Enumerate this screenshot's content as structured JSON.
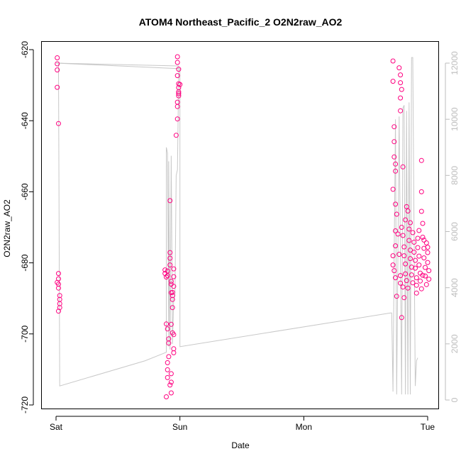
{
  "chart_data": {
    "type": "scatter",
    "title": "ATOM4 Northeast_Pacific_2 O2N2raw_AO2",
    "xlabel": "Date",
    "ylabel": "O2N2raw_AO2",
    "x_ticks": [
      "Sat",
      "Sun",
      "Mon",
      "Tue"
    ],
    "xlim": [
      -0.04,
      3.07
    ],
    "ylim": [
      -720,
      -620
    ],
    "y_ticks": [
      -620,
      -640,
      -660,
      -680,
      -700,
      -720
    ],
    "y2lim": [
      0,
      12000
    ],
    "y2_ticks": [
      0,
      2000,
      4000,
      6000,
      8000,
      10000,
      12000
    ],
    "colors": {
      "points": "#ff0080",
      "secondary_line": "#c8c8c8",
      "axis": "#000000",
      "secondary_axis": "#bdbdbd"
    },
    "series": [
      {
        "points": [
          [
            0.01,
            -622.3
          ],
          [
            0.01,
            -624
          ],
          [
            0.01,
            -625.7
          ],
          [
            0.01,
            -630.6
          ],
          [
            0.02,
            -640.8
          ],
          [
            0.02,
            -683
          ],
          [
            0.02,
            -684.5
          ],
          [
            0.02,
            -686
          ],
          [
            0.02,
            -687.1
          ],
          [
            0.03,
            -689.2
          ],
          [
            0.03,
            -690.3
          ],
          [
            0.03,
            -691.5
          ],
          [
            0.03,
            -692.6
          ],
          [
            0.02,
            -693.6
          ],
          [
            0.01,
            -685.5
          ],
          [
            0.88,
            -682
          ],
          [
            0.88,
            -683
          ],
          [
            0.89,
            -684
          ],
          [
            0.9,
            -682.3
          ],
          [
            0.9,
            -683.6
          ],
          [
            0.89,
            -697.2
          ],
          [
            0.9,
            -698.6
          ],
          [
            0.91,
            -701.4
          ],
          [
            0.91,
            -702.6
          ],
          [
            0.91,
            -706.4
          ],
          [
            0.9,
            -708.1
          ],
          [
            0.9,
            -710.1
          ],
          [
            0.9,
            -712.3
          ],
          [
            0.89,
            -717.7
          ],
          [
            0.92,
            -662.5
          ],
          [
            0.92,
            -677.1
          ],
          [
            0.92,
            -678.7
          ],
          [
            0.92,
            -680.6
          ],
          [
            0.93,
            -685.2
          ],
          [
            0.93,
            -686
          ],
          [
            0.93,
            -688.4
          ],
          [
            0.94,
            -689.2
          ],
          [
            0.94,
            -690.3
          ],
          [
            0.94,
            -692.6
          ],
          [
            0.93,
            -697.3
          ],
          [
            0.94,
            -699.7
          ],
          [
            0.95,
            -700.2
          ],
          [
            0.95,
            -704.2
          ],
          [
            0.93,
            -711.2
          ],
          [
            0.93,
            -713.6
          ],
          [
            0.92,
            -714.4
          ],
          [
            0.93,
            -716.6
          ],
          [
            0.95,
            -705.3
          ],
          [
            0.94,
            -688.3
          ],
          [
            0.95,
            -683.9
          ],
          [
            0.95,
            -681.7
          ],
          [
            0.95,
            -686.6
          ],
          [
            0.98,
            -622
          ],
          [
            0.98,
            -623.6
          ],
          [
            0.99,
            -625.5
          ],
          [
            0.98,
            -627.3
          ],
          [
            0.99,
            -629.6
          ],
          [
            0.99,
            -630.7
          ],
          [
            0.99,
            -631.9
          ],
          [
            0.99,
            -633
          ],
          [
            0.98,
            -634.8
          ],
          [
            0.98,
            -636
          ],
          [
            0.98,
            -639.5
          ],
          [
            0.97,
            -644.1
          ],
          [
            1.0,
            -629.8
          ],
          [
            0.99,
            -632.4
          ],
          [
            2.72,
            -623.2
          ],
          [
            2.72,
            -628.9
          ],
          [
            2.73,
            -641.7
          ],
          [
            2.73,
            -645.9
          ],
          [
            2.73,
            -650.2
          ],
          [
            2.74,
            -652.2
          ],
          [
            2.74,
            -654.2
          ],
          [
            2.72,
            -659.3
          ],
          [
            2.74,
            -663.5
          ],
          [
            2.75,
            -666.3
          ],
          [
            2.74,
            -671
          ],
          [
            2.74,
            -675.2
          ],
          [
            2.72,
            -678
          ],
          [
            2.72,
            -680.6
          ],
          [
            2.73,
            -682.2
          ],
          [
            2.74,
            -684.2
          ],
          [
            2.75,
            -689.4
          ],
          [
            2.76,
            -671.9
          ],
          [
            2.77,
            -677.6
          ],
          [
            2.78,
            -683.6
          ],
          [
            2.78,
            -685.7
          ],
          [
            2.8,
            -686.8
          ],
          [
            2.81,
            -689.8
          ],
          [
            2.79,
            -695.4
          ],
          [
            2.77,
            -625.1
          ],
          [
            2.78,
            -627.1
          ],
          [
            2.78,
            -629.3
          ],
          [
            2.79,
            -631.2
          ],
          [
            2.78,
            -633.6
          ],
          [
            2.78,
            -637.2
          ],
          [
            2.8,
            -653
          ],
          [
            2.79,
            -670
          ],
          [
            2.8,
            -672.3
          ],
          [
            2.81,
            -675.5
          ],
          [
            2.81,
            -678
          ],
          [
            2.82,
            -680.3
          ],
          [
            2.82,
            -683.1
          ],
          [
            2.83,
            -685
          ],
          [
            2.84,
            -687.1
          ],
          [
            2.83,
            -664.2
          ],
          [
            2.84,
            -665.4
          ],
          [
            2.82,
            -667.9
          ],
          [
            2.85,
            -670.5
          ],
          [
            2.85,
            -673.7
          ],
          [
            2.86,
            -676.4
          ],
          [
            2.86,
            -678.8
          ],
          [
            2.87,
            -681.2
          ],
          [
            2.87,
            -683.4
          ],
          [
            2.88,
            -685.6
          ],
          [
            2.86,
            -668.7
          ],
          [
            2.88,
            -671.5
          ],
          [
            2.89,
            -674.2
          ],
          [
            2.89,
            -677
          ],
          [
            2.9,
            -679.3
          ],
          [
            2.9,
            -681.5
          ],
          [
            2.91,
            -684.2
          ],
          [
            2.91,
            -686.3
          ],
          [
            2.92,
            -673.1
          ],
          [
            2.92,
            -675.7
          ],
          [
            2.93,
            -678.1
          ],
          [
            2.93,
            -680.6
          ],
          [
            2.94,
            -682.9
          ],
          [
            2.94,
            -685.1
          ],
          [
            2.95,
            -687.3
          ],
          [
            2.95,
            -651.2
          ],
          [
            2.95,
            -660
          ],
          [
            2.95,
            -665.5
          ],
          [
            2.96,
            -668.9
          ],
          [
            2.96,
            -672.8
          ],
          [
            2.97,
            -675.9
          ],
          [
            2.97,
            -678.6
          ],
          [
            2.98,
            -681.3
          ],
          [
            2.98,
            -683.7
          ],
          [
            2.99,
            -686.1
          ],
          [
            2.99,
            -674.4
          ],
          [
            3.0,
            -677.1
          ],
          [
            3.0,
            -679.9
          ],
          [
            3.01,
            -682.2
          ],
          [
            3.01,
            -684.6
          ],
          [
            3.0,
            -675.6
          ],
          [
            2.97,
            -673.6
          ],
          [
            2.96,
            -683.5
          ],
          [
            2.93,
            -670.9
          ],
          [
            2.91,
            -688.5
          ]
        ]
      },
      {
        "axis": "right",
        "line": [
          [
            0.02,
            12000
          ],
          [
            0.02,
            11800
          ],
          [
            0.03,
            500
          ],
          [
            0.72,
            1400
          ],
          [
            0.89,
            1700
          ],
          [
            0.89,
            9000
          ],
          [
            0.9,
            8800
          ],
          [
            0.91,
            1900
          ],
          [
            0.91,
            8500
          ],
          [
            0.92,
            1800
          ],
          [
            0.93,
            8700
          ],
          [
            0.94,
            2000
          ],
          [
            0.95,
            3600
          ],
          [
            0.96,
            3700
          ],
          [
            0.97,
            8000
          ],
          [
            0.98,
            8200
          ],
          [
            0.99,
            11500
          ],
          [
            0.99,
            11900
          ],
          [
            0.0,
            12000
          ],
          [
            1.0,
            11800
          ],
          [
            1.0,
            1900
          ],
          [
            2.7,
            3100
          ],
          [
            2.71,
            3100
          ],
          [
            2.72,
            300
          ],
          [
            2.73,
            5200
          ],
          [
            2.74,
            10000
          ],
          [
            2.75,
            200
          ],
          [
            2.77,
            10100
          ],
          [
            2.79,
            200
          ],
          [
            2.8,
            10400
          ],
          [
            2.81,
            10500
          ],
          [
            2.82,
            200
          ],
          [
            2.83,
            10300
          ],
          [
            2.84,
            200
          ],
          [
            2.85,
            10600
          ],
          [
            2.86,
            200
          ],
          [
            2.87,
            12200
          ],
          [
            2.88,
            12200
          ],
          [
            2.89,
            6000
          ],
          [
            2.9,
            500
          ],
          [
            2.91,
            1400
          ],
          [
            2.92,
            1500
          ]
        ]
      }
    ]
  }
}
